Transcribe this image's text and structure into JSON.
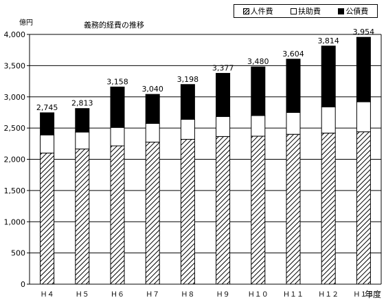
{
  "chart_data": {
    "type": "bar",
    "stacked": true,
    "title": "義務的経費の推移",
    "ylabel": "億円",
    "xlabel": "年度",
    "categories": [
      "Ｈ４",
      "Ｈ５",
      "Ｈ６",
      "Ｈ７",
      "Ｈ８",
      "Ｈ９",
      "Ｈ１０",
      "Ｈ１１",
      "Ｈ１２",
      "Ｈ１３"
    ],
    "ylim": [
      0,
      4000
    ],
    "yticks": [
      0,
      500,
      1000,
      1500,
      2000,
      2500,
      3000,
      3500,
      4000
    ],
    "ytick_labels": [
      "0",
      "500",
      "1,000",
      "1,500",
      "2,000",
      "2,500",
      "3,000",
      "3,500",
      "4,000"
    ],
    "grid": true,
    "legend_position": "top-right",
    "series": [
      {
        "name": "人件費",
        "pattern": "hatch",
        "values": [
          2100,
          2165,
          2215,
          2275,
          2320,
          2365,
          2370,
          2400,
          2420,
          2440
        ]
      },
      {
        "name": "扶助費",
        "pattern": "white",
        "values": [
          290,
          270,
          295,
          300,
          320,
          320,
          330,
          350,
          420,
          480
        ]
      },
      {
        "name": "公債費",
        "pattern": "black",
        "values": [
          355,
          378,
          648,
          465,
          558,
          692,
          780,
          854,
          974,
          1034
        ]
      }
    ],
    "totals": [
      2745,
      2813,
      3158,
      3040,
      3198,
      3377,
      3480,
      3604,
      3814,
      3954
    ],
    "total_labels": [
      "2,745",
      "2,813",
      "3,158",
      "3,040",
      "3,198",
      "3,377",
      "3,480",
      "3,604",
      "3,814",
      "3,954"
    ]
  }
}
